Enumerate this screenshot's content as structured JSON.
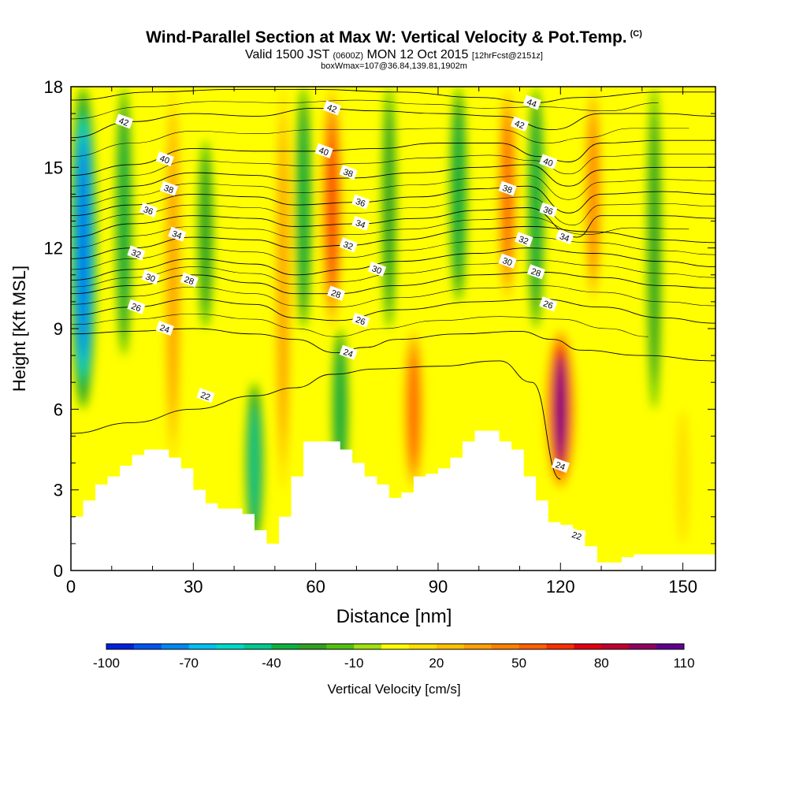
{
  "title": {
    "main": "Wind-Parallel Section at Max W: Vertical Velocity & Pot.Temp.",
    "copyright": "(C)",
    "line2_a": "Valid 1500 JST",
    "line2_b": "(0600Z)",
    "line2_c": "MON 12 Oct 2015",
    "line2_d": "[12hrFcst@2151z]",
    "line3": "boxWmax=107@36.84,139.81,1902m"
  },
  "chart_data": {
    "type": "heatmap",
    "xlabel": "Distance [nm]",
    "ylabel": "Height [Kft MSL]",
    "xlim": [
      0,
      158
    ],
    "ylim": [
      0,
      18
    ],
    "x_ticks": [
      0,
      30,
      60,
      90,
      120,
      150
    ],
    "y_ticks": [
      0,
      3,
      6,
      9,
      12,
      15,
      18
    ],
    "colorbar": {
      "label": "Vertical Velocity [cm/s]",
      "tick_labels": [
        "-100",
        "-70",
        "-40",
        "-10",
        "20",
        "50",
        "80",
        "110"
      ],
      "levels": [
        -100,
        -90,
        -80,
        -70,
        -60,
        -50,
        -40,
        -30,
        -20,
        -10,
        0,
        10,
        20,
        30,
        40,
        50,
        60,
        70,
        80,
        90,
        100,
        110
      ],
      "colors": [
        "#0022dd",
        "#0055ee",
        "#0088f0",
        "#00c0f0",
        "#00d8c8",
        "#00c890",
        "#10b040",
        "#30a020",
        "#50c010",
        "#a0e010",
        "#ffff00",
        "#ffe000",
        "#ffc000",
        "#ffa000",
        "#ff8000",
        "#ff6000",
        "#f83000",
        "#e00010",
        "#c00030",
        "#900060",
        "#600090"
      ]
    },
    "w_features": [
      {
        "x": 3,
        "z_bottom": 6,
        "z_top": 18,
        "w": -85
      },
      {
        "x": 13,
        "z_bottom": 8,
        "z_top": 18,
        "w": -30
      },
      {
        "x": 25,
        "z_bottom": 4,
        "z_top": 18,
        "w": 35
      },
      {
        "x": 33,
        "z_bottom": 9,
        "z_top": 16,
        "w": -25
      },
      {
        "x": 45,
        "z_bottom": 1,
        "z_top": 7,
        "w": -40
      },
      {
        "x": 52,
        "z_bottom": 3,
        "z_top": 18,
        "w": 30
      },
      {
        "x": 57,
        "z_bottom": 9,
        "z_top": 18,
        "w": -30
      },
      {
        "x": 64,
        "z_bottom": 9,
        "z_top": 18,
        "w": 60
      },
      {
        "x": 66,
        "z_bottom": 3,
        "z_top": 9,
        "w": -30
      },
      {
        "x": 84,
        "z_bottom": 3,
        "z_top": 9,
        "w": 55
      },
      {
        "x": 78,
        "z_bottom": 9,
        "z_top": 18,
        "w": -20
      },
      {
        "x": 95,
        "z_bottom": 10,
        "z_top": 18,
        "w": -35
      },
      {
        "x": 107,
        "z_bottom": 10,
        "z_top": 18,
        "w": 50
      },
      {
        "x": 114,
        "z_bottom": 9,
        "z_top": 18,
        "w": -30
      },
      {
        "x": 120,
        "z_bottom": 3,
        "z_top": 9,
        "w": 107
      },
      {
        "x": 128,
        "z_bottom": 10,
        "z_top": 18,
        "w": 40
      },
      {
        "x": 143,
        "z_bottom": 6,
        "z_top": 18,
        "w": -20
      },
      {
        "x": 150,
        "z_bottom": 1,
        "z_top": 6,
        "w": 15
      }
    ],
    "terrain_profile": {
      "x": [
        0,
        3,
        6,
        9,
        12,
        15,
        18,
        21,
        24,
        27,
        30,
        33,
        36,
        39,
        42,
        45,
        48,
        51,
        54,
        57,
        60,
        63,
        66,
        69,
        72,
        75,
        78,
        81,
        84,
        87,
        90,
        93,
        96,
        99,
        102,
        105,
        108,
        111,
        114,
        117,
        120,
        123,
        126,
        129,
        132,
        135,
        138,
        141,
        144,
        147,
        150,
        153,
        156,
        158
      ],
      "height": [
        2.0,
        2.6,
        3.2,
        3.5,
        3.9,
        4.3,
        4.5,
        4.5,
        4.2,
        3.8,
        3.0,
        2.5,
        2.3,
        2.3,
        2.1,
        1.5,
        1.0,
        2.0,
        3.5,
        4.8,
        4.8,
        4.8,
        4.5,
        4.0,
        3.5,
        3.2,
        2.7,
        2.9,
        3.5,
        3.6,
        3.8,
        4.2,
        4.8,
        5.2,
        5.2,
        4.8,
        4.5,
        3.5,
        2.6,
        1.8,
        1.7,
        1.5,
        0.9,
        0.3,
        0.3,
        0.5,
        0.6,
        0.6,
        0.6,
        0.6,
        0.6,
        0.6,
        0.6,
        0.6
      ]
    },
    "theta_contours": [
      {
        "value": 22,
        "label": "22",
        "points": [
          [
            0,
            5.1
          ],
          [
            15,
            5.5
          ],
          [
            30,
            6.0
          ],
          [
            45,
            6.5
          ],
          [
            55,
            6.8
          ],
          [
            64,
            7.3
          ],
          [
            75,
            7.5
          ],
          [
            90,
            7.6
          ],
          [
            105,
            7.8
          ],
          [
            113,
            7.0
          ],
          [
            120,
            3.4
          ]
        ]
      },
      {
        "value": 24,
        "label": "24",
        "points": [
          [
            0,
            8.8
          ],
          [
            15,
            8.9
          ],
          [
            30,
            9.0
          ],
          [
            45,
            8.8
          ],
          [
            55,
            8.6
          ],
          [
            65,
            8.1
          ],
          [
            72,
            8.3
          ],
          [
            80,
            8.6
          ],
          [
            95,
            8.8
          ],
          [
            110,
            8.9
          ],
          [
            118,
            8.6
          ],
          [
            125,
            8.2
          ],
          [
            140,
            8.0
          ],
          [
            158,
            7.8
          ]
        ]
      },
      {
        "value": 26,
        "label": "26",
        "points": [
          [
            0,
            9.5
          ],
          [
            15,
            9.8
          ],
          [
            30,
            10.1
          ],
          [
            45,
            9.9
          ],
          [
            55,
            9.4
          ],
          [
            65,
            9.3
          ],
          [
            80,
            9.7
          ],
          [
            100,
            10.0
          ],
          [
            115,
            10.1
          ],
          [
            130,
            9.8
          ],
          [
            145,
            9.4
          ],
          [
            158,
            9.2
          ]
        ]
      },
      {
        "value": 28,
        "label": "28",
        "points": [
          [
            0,
            10.3
          ],
          [
            15,
            10.6
          ],
          [
            30,
            11.0
          ],
          [
            45,
            10.7
          ],
          [
            55,
            10.3
          ],
          [
            65,
            10.3
          ],
          [
            80,
            10.6
          ],
          [
            100,
            11.0
          ],
          [
            115,
            11.1
          ],
          [
            130,
            10.9
          ],
          [
            145,
            10.6
          ],
          [
            158,
            10.5
          ]
        ]
      },
      {
        "value": 30,
        "label": "30",
        "points": [
          [
            0,
            10.8
          ],
          [
            15,
            11.2
          ],
          [
            30,
            11.6
          ],
          [
            45,
            11.4
          ],
          [
            55,
            11.0
          ],
          [
            68,
            11.2
          ],
          [
            80,
            11.5
          ],
          [
            100,
            11.8
          ],
          [
            112,
            12.0
          ],
          [
            128,
            11.8
          ],
          [
            145,
            11.5
          ],
          [
            158,
            11.3
          ]
        ]
      },
      {
        "value": 32,
        "label": "32",
        "points": [
          [
            0,
            11.6
          ],
          [
            15,
            12.0
          ],
          [
            30,
            12.4
          ],
          [
            45,
            12.3
          ],
          [
            55,
            12.0
          ],
          [
            68,
            12.1
          ],
          [
            80,
            12.3
          ],
          [
            100,
            12.7
          ],
          [
            112,
            12.8
          ],
          [
            128,
            12.6
          ],
          [
            145,
            12.3
          ],
          [
            158,
            12.2
          ]
        ]
      },
      {
        "value": 34,
        "label": "34",
        "points": [
          [
            0,
            12.4
          ],
          [
            15,
            12.9
          ],
          [
            30,
            13.2
          ],
          [
            45,
            13.1
          ],
          [
            55,
            12.8
          ],
          [
            70,
            12.9
          ],
          [
            85,
            13.1
          ],
          [
            100,
            13.4
          ],
          [
            112,
            13.5
          ],
          [
            124,
            12.4
          ],
          [
            130,
            13.2
          ],
          [
            145,
            13.2
          ],
          [
            158,
            13.1
          ]
        ]
      },
      {
        "value": 36,
        "label": "36",
        "points": [
          [
            0,
            13.2
          ],
          [
            15,
            13.6
          ],
          [
            30,
            14.0
          ],
          [
            45,
            13.9
          ],
          [
            55,
            13.6
          ],
          [
            70,
            13.7
          ],
          [
            85,
            13.9
          ],
          [
            100,
            14.2
          ],
          [
            112,
            14.3
          ],
          [
            122,
            13.3
          ],
          [
            130,
            14.0
          ],
          [
            145,
            14.1
          ],
          [
            158,
            14.0
          ]
        ]
      },
      {
        "value": 38,
        "label": "38",
        "points": [
          [
            0,
            13.9
          ],
          [
            15,
            14.3
          ],
          [
            30,
            14.8
          ],
          [
            45,
            14.7
          ],
          [
            55,
            14.5
          ],
          [
            68,
            14.6
          ],
          [
            85,
            14.8
          ],
          [
            100,
            15.0
          ],
          [
            112,
            15.1
          ],
          [
            122,
            14.3
          ],
          [
            130,
            14.9
          ],
          [
            145,
            15.0
          ],
          [
            158,
            15.0
          ]
        ]
      },
      {
        "value": 40,
        "label": "40",
        "points": [
          [
            0,
            14.7
          ],
          [
            15,
            15.1
          ],
          [
            30,
            15.7
          ],
          [
            45,
            15.6
          ],
          [
            60,
            15.6
          ],
          [
            75,
            15.7
          ],
          [
            90,
            15.9
          ],
          [
            105,
            15.9
          ],
          [
            115,
            15.4
          ],
          [
            122,
            15.2
          ],
          [
            130,
            15.9
          ],
          [
            145,
            16.0
          ],
          [
            158,
            16.0
          ]
        ]
      },
      {
        "value": 42,
        "label": "42",
        "points": [
          [
            0,
            16.1
          ],
          [
            15,
            16.7
          ],
          [
            30,
            17.0
          ],
          [
            45,
            16.9
          ],
          [
            60,
            17.2
          ],
          [
            75,
            17.1
          ],
          [
            90,
            17.0
          ],
          [
            105,
            16.9
          ],
          [
            118,
            16.4
          ],
          [
            130,
            17.0
          ],
          [
            145,
            17.0
          ],
          [
            158,
            16.9
          ]
        ]
      },
      {
        "value": 44,
        "label": "44",
        "points": [
          [
            0,
            17.5
          ],
          [
            20,
            17.8
          ],
          [
            40,
            17.9
          ],
          [
            60,
            17.9
          ],
          [
            80,
            17.8
          ],
          [
            100,
            17.6
          ],
          [
            113,
            17.4
          ],
          [
            125,
            17.6
          ],
          [
            145,
            17.8
          ],
          [
            158,
            17.8
          ]
        ]
      }
    ],
    "contour_labels": [
      {
        "text": "42",
        "x": 13,
        "z": 16.7
      },
      {
        "text": "40",
        "x": 23,
        "z": 15.3
      },
      {
        "text": "38",
        "x": 24,
        "z": 14.2
      },
      {
        "text": "36",
        "x": 19,
        "z": 13.4
      },
      {
        "text": "34",
        "x": 26,
        "z": 12.5
      },
      {
        "text": "32",
        "x": 16,
        "z": 11.8
      },
      {
        "text": "30",
        "x": 19.5,
        "z": 10.9
      },
      {
        "text": "28",
        "x": 29,
        "z": 10.8
      },
      {
        "text": "26",
        "x": 16,
        "z": 9.8
      },
      {
        "text": "24",
        "x": 23,
        "z": 9.0
      },
      {
        "text": "22",
        "x": 33,
        "z": 6.5
      },
      {
        "text": "42",
        "x": 64,
        "z": 17.2
      },
      {
        "text": "40",
        "x": 62,
        "z": 15.6
      },
      {
        "text": "38",
        "x": 68,
        "z": 14.8
      },
      {
        "text": "36",
        "x": 71,
        "z": 13.7
      },
      {
        "text": "34",
        "x": 71,
        "z": 12.9
      },
      {
        "text": "32",
        "x": 68,
        "z": 12.1
      },
      {
        "text": "30",
        "x": 75,
        "z": 11.2
      },
      {
        "text": "28",
        "x": 65,
        "z": 10.3
      },
      {
        "text": "26",
        "x": 71,
        "z": 9.3
      },
      {
        "text": "24",
        "x": 68,
        "z": 8.1
      },
      {
        "text": "44",
        "x": 113,
        "z": 17.4
      },
      {
        "text": "42",
        "x": 110,
        "z": 16.6
      },
      {
        "text": "40",
        "x": 117,
        "z": 15.2
      },
      {
        "text": "38",
        "x": 107,
        "z": 14.2
      },
      {
        "text": "36",
        "x": 117,
        "z": 13.4
      },
      {
        "text": "34",
        "x": 121,
        "z": 12.4
      },
      {
        "text": "32",
        "x": 111,
        "z": 12.3
      },
      {
        "text": "30",
        "x": 107,
        "z": 11.5
      },
      {
        "text": "28",
        "x": 114,
        "z": 11.1
      },
      {
        "text": "26",
        "x": 117,
        "z": 9.9
      },
      {
        "text": "24",
        "x": 120,
        "z": 3.9
      },
      {
        "text": "22",
        "x": 124,
        "z": 1.3
      }
    ]
  }
}
